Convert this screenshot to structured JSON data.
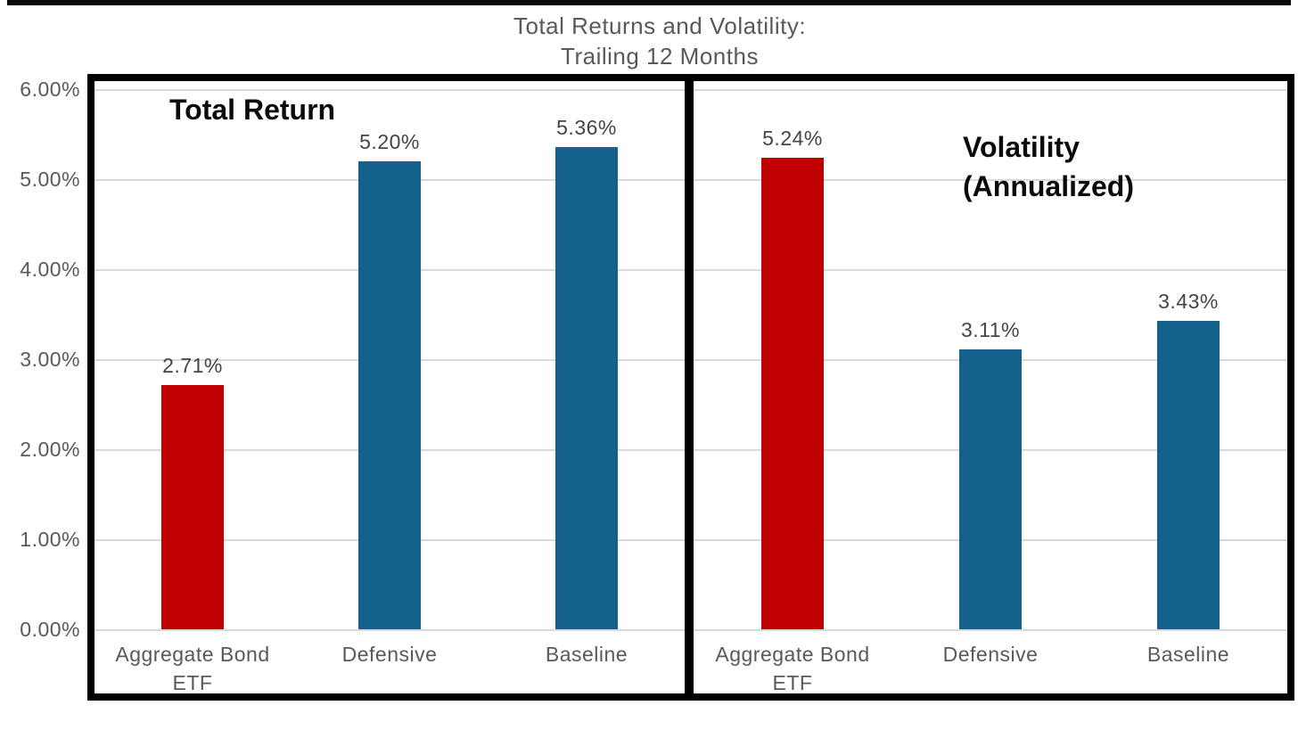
{
  "title": {
    "line1": "Total Returns and Volatility:",
    "line2": "Trailing 12 Months"
  },
  "colors": {
    "bar_red": "#c00000",
    "bar_blue": "#14618c",
    "gridline": "#d9d9d9",
    "axis_text": "#595959",
    "value_label_text": "#444444",
    "panel_title_text": "#0a0a0a",
    "border": "#000000"
  },
  "chart_data": {
    "type": "bar",
    "title": "Total Returns and Volatility: Trailing 12 Months",
    "legend": "none",
    "grid": true,
    "y_axis": {
      "min": 0,
      "max": 6,
      "tick_step": 1,
      "tick_labels": [
        "0.00%",
        "1.00%",
        "2.00%",
        "3.00%",
        "4.00%",
        "5.00%",
        "6.00%"
      ]
    },
    "categories": [
      "Aggregate Bond ETF",
      "Defensive",
      "Baseline"
    ],
    "panels": [
      {
        "name": "Total Return",
        "title_lines": [
          "Total Return"
        ],
        "values": [
          2.71,
          5.2,
          5.36
        ],
        "value_labels": [
          "2.71%",
          "5.20%",
          "5.36%"
        ],
        "bar_colors": [
          "#c00000",
          "#14618c",
          "#14618c"
        ]
      },
      {
        "name": "Volatility (Annualized)",
        "title_lines": [
          "Volatility",
          "(Annualized)"
        ],
        "values": [
          5.24,
          3.11,
          3.43
        ],
        "value_labels": [
          "5.24%",
          "3.11%",
          "3.43%"
        ],
        "bar_colors": [
          "#c00000",
          "#14618c",
          "#14618c"
        ]
      }
    ]
  }
}
